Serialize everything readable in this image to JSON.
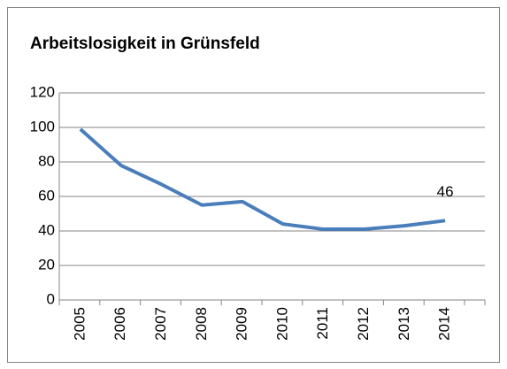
{
  "chart_data": {
    "type": "line",
    "title": "Arbeitslosigkeit in Grünsfeld",
    "categories": [
      "2005",
      "2006",
      "2007",
      "2008",
      "2009",
      "2010",
      "2011",
      "2012",
      "2013",
      "2014"
    ],
    "series": [
      {
        "name": "Arbeitslosigkeit",
        "color": "#4a7ebb",
        "values": [
          99,
          78,
          67,
          55,
          57,
          44,
          41,
          41,
          43,
          46
        ]
      }
    ],
    "ylim": [
      0,
      120
    ],
    "yticks": [
      0,
      20,
      40,
      60,
      80,
      100,
      120
    ],
    "grid": true
  }
}
